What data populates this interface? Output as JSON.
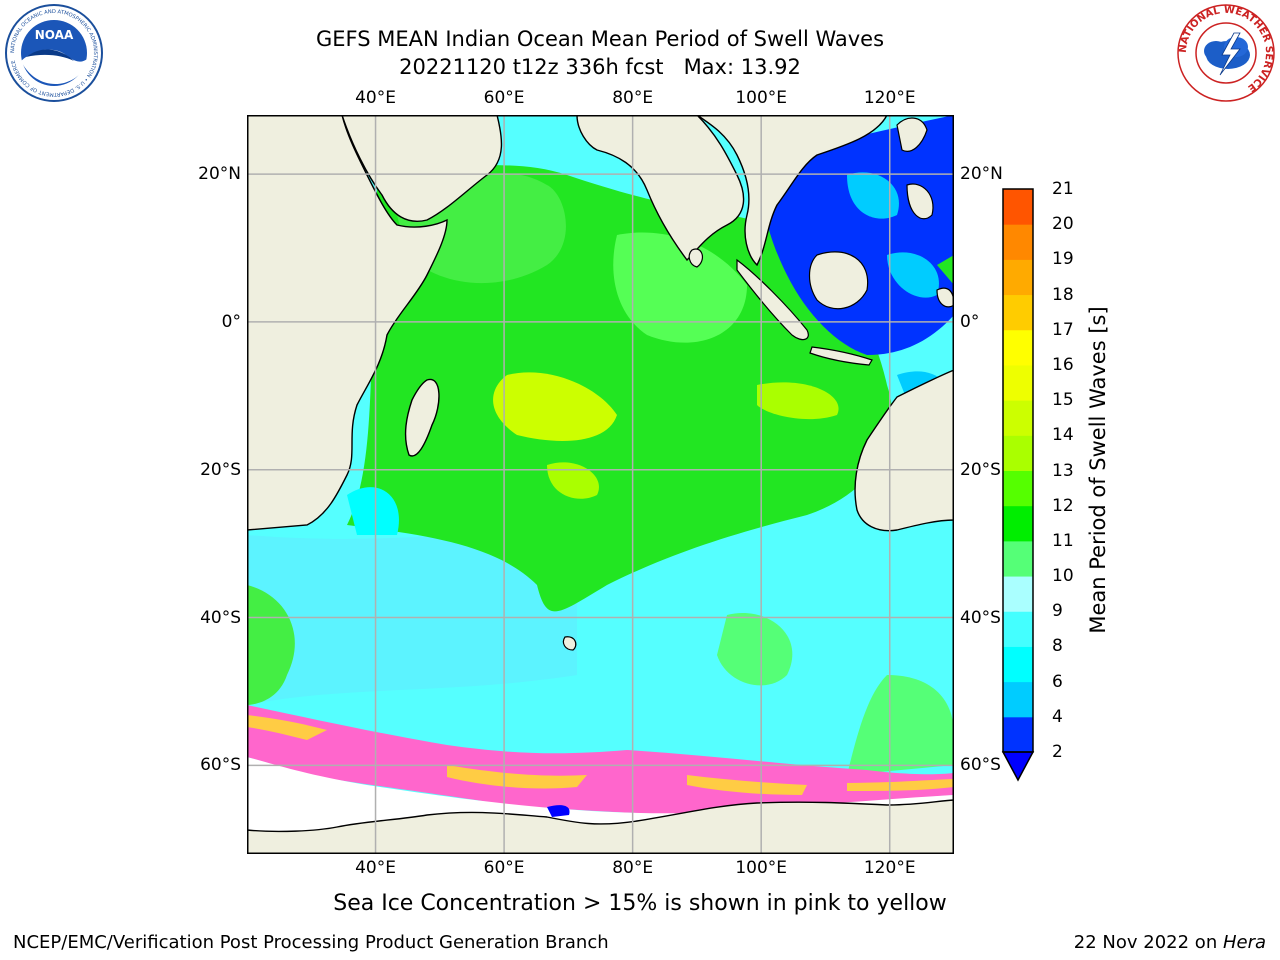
{
  "title": {
    "line1": "GEFS MEAN Indian Ocean Mean Period of Swell Waves",
    "line2": "20221120 t12z 336h fcst   Max: 13.92"
  },
  "map": {
    "lon_range": [
      20,
      130
    ],
    "lat_range": [
      -72,
      28
    ],
    "lon_ticks": [
      {
        "value": 40,
        "label": "40°E"
      },
      {
        "value": 60,
        "label": "60°E"
      },
      {
        "value": 80,
        "label": "80°E"
      },
      {
        "value": 100,
        "label": "100°E"
      },
      {
        "value": 120,
        "label": "120°E"
      }
    ],
    "lat_ticks": [
      {
        "value": 20,
        "label": "20°N"
      },
      {
        "value": 0,
        "label": "0°"
      },
      {
        "value": -20,
        "label": "20°S"
      },
      {
        "value": -40,
        "label": "40°S"
      },
      {
        "value": -60,
        "label": "60°S"
      }
    ],
    "colors": {
      "land": "#efefdf",
      "grid": "#b0b0b0",
      "sea_ice": "#ffffff",
      "ice_pink": "#ff66cc",
      "ice_yellow": "#ffcc44"
    }
  },
  "colorbar": {
    "label": "Mean Period of Swell Waves [s]",
    "ticks": [
      "2",
      "4",
      "6",
      "8",
      "9",
      "10",
      "11",
      "12",
      "13",
      "14",
      "15",
      "16",
      "17",
      "18",
      "19",
      "20",
      "21"
    ],
    "colors": [
      "#0033ff",
      "#00ccff",
      "#00ffff",
      "#44ffff",
      "#aaffff",
      "#55ff77",
      "#00ee00",
      "#55ff00",
      "#aaff00",
      "#ccff00",
      "#eeff00",
      "#ffff00",
      "#ffcc00",
      "#ffaa00",
      "#ff8800",
      "#ff5500",
      "#ff2200",
      "#ff0000"
    ],
    "under_color": "#0000ff"
  },
  "caption": "Sea Ice Concentration > 15% is shown in pink to yellow",
  "footer": {
    "left": "NCEP/EMC/Verification Post Processing Product Generation Branch",
    "right_prefix": "22 Nov 2022 on ",
    "right_italic": "Hera"
  },
  "logos": {
    "noaa_text": "NOAA",
    "noaa_ring": "NATIONAL OCEANIC AND ATMOSPHERIC ADMINISTRATION • U.S. DEPARTMENT OF COMMERCE",
    "nws_ring": "NATIONAL WEATHER SERVICE"
  }
}
